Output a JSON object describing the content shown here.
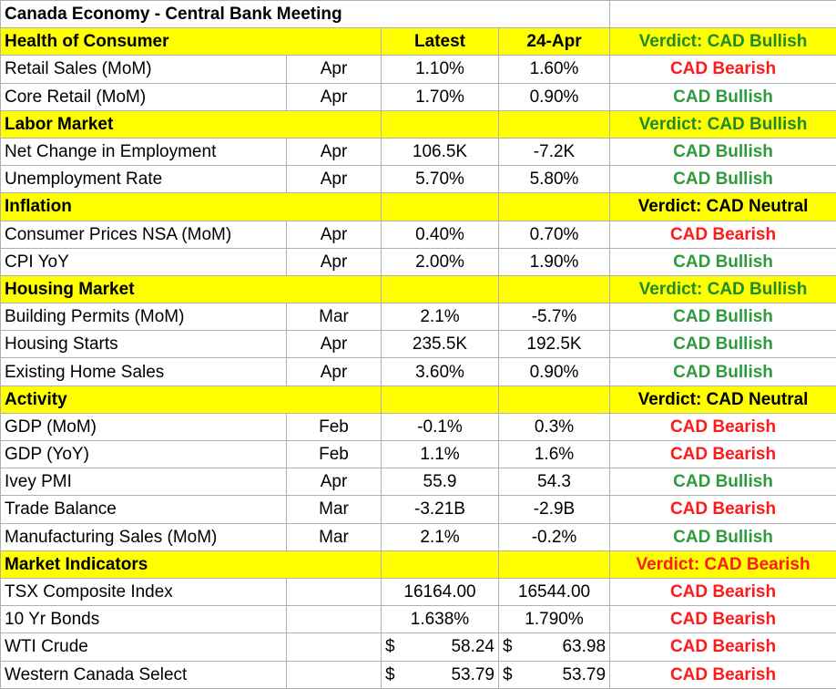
{
  "title": "Canada Economy - Central Bank Meeting",
  "columns": {
    "latest": "Latest",
    "previous": "24-Apr"
  },
  "sections": [
    {
      "name": "Health of Consumer",
      "show_headers": true,
      "verdict": "Verdict: CAD Bullish",
      "verdict_tone": "bull",
      "rows": [
        {
          "indicator": "Retail Sales (MoM)",
          "period": "Apr",
          "latest": "1.10%",
          "previous": "1.60%",
          "signal": "CAD Bearish",
          "tone": "bear"
        },
        {
          "indicator": "Core Retail (MoM)",
          "period": "Apr",
          "latest": "1.70%",
          "previous": "0.90%",
          "signal": "CAD Bullish",
          "tone": "bull"
        }
      ]
    },
    {
      "name": "Labor Market",
      "show_headers": false,
      "verdict": "Verdict: CAD Bullish",
      "verdict_tone": "bull",
      "rows": [
        {
          "indicator": "Net Change in Employment",
          "period": "Apr",
          "latest": "106.5K",
          "previous": "-7.2K",
          "signal": "CAD Bullish",
          "tone": "bull"
        },
        {
          "indicator": "Unemployment Rate",
          "period": "Apr",
          "latest": "5.70%",
          "previous": "5.80%",
          "signal": "CAD Bullish",
          "tone": "bull"
        }
      ]
    },
    {
      "name": "Inflation",
      "show_headers": false,
      "verdict": "Verdict: CAD Neutral",
      "verdict_tone": "neutral",
      "rows": [
        {
          "indicator": "Consumer Prices NSA (MoM)",
          "period": "Apr",
          "latest": "0.40%",
          "previous": "0.70%",
          "signal": "CAD Bearish",
          "tone": "bear"
        },
        {
          "indicator": "CPI YoY",
          "period": "Apr",
          "latest": "2.00%",
          "previous": "1.90%",
          "signal": "CAD Bullish",
          "tone": "bull"
        }
      ]
    },
    {
      "name": "Housing Market",
      "show_headers": false,
      "verdict": "Verdict: CAD Bullish",
      "verdict_tone": "bull",
      "rows": [
        {
          "indicator": "Building Permits (MoM)",
          "period": "Mar",
          "latest": "2.1%",
          "previous": "-5.7%",
          "signal": "CAD Bullish",
          "tone": "bull"
        },
        {
          "indicator": "Housing Starts",
          "period": "Apr",
          "latest": "235.5K",
          "previous": "192.5K",
          "signal": "CAD Bullish",
          "tone": "bull"
        },
        {
          "indicator": "Existing Home Sales",
          "period": "Apr",
          "latest": "3.60%",
          "previous": "0.90%",
          "signal": "CAD Bullish",
          "tone": "bull"
        }
      ]
    },
    {
      "name": "Activity",
      "show_headers": false,
      "verdict": "Verdict: CAD Neutral",
      "verdict_tone": "neutral",
      "rows": [
        {
          "indicator": "GDP (MoM)",
          "period": "Feb",
          "latest": "-0.1%",
          "previous": "0.3%",
          "signal": "CAD Bearish",
          "tone": "bear"
        },
        {
          "indicator": "GDP (YoY)",
          "period": "Feb",
          "latest": "1.1%",
          "previous": "1.6%",
          "signal": "CAD Bearish",
          "tone": "bear"
        },
        {
          "indicator": "Ivey PMI",
          "period": "Apr",
          "latest": "55.9",
          "previous": "54.3",
          "signal": "CAD Bullish",
          "tone": "bull"
        },
        {
          "indicator": "Trade Balance",
          "period": "Mar",
          "latest": "-3.21B",
          "previous": "-2.9B",
          "signal": "CAD Bearish",
          "tone": "bear"
        },
        {
          "indicator": "Manufacturing Sales (MoM)",
          "period": "Mar",
          "latest": "2.1%",
          "previous": "-0.2%",
          "signal": "CAD Bullish",
          "tone": "bull"
        }
      ]
    },
    {
      "name": "Market Indicators",
      "show_headers": false,
      "verdict": "Verdict: CAD Bearish",
      "verdict_tone": "bear",
      "rows": [
        {
          "indicator": "TSX Composite Index",
          "period": "",
          "latest": "16164.00",
          "previous": "16544.00",
          "signal": "CAD Bearish",
          "tone": "bear"
        },
        {
          "indicator": "10 Yr Bonds",
          "period": "",
          "latest": "1.638%",
          "previous": "1.790%",
          "signal": "CAD Bearish",
          "tone": "bear"
        },
        {
          "indicator": "WTI Crude",
          "period": "",
          "latest": "58.24",
          "previous": "63.98",
          "currency": "$",
          "signal": "CAD Bearish",
          "tone": "bear"
        },
        {
          "indicator": "Western Canada Select",
          "period": "",
          "latest": "53.79",
          "previous": "53.79",
          "currency": "$",
          "signal": "CAD Bearish",
          "tone": "bear"
        }
      ]
    }
  ],
  "colors": {
    "section_fill": "#ffff00",
    "bullish": "#2e9b3d",
    "bearish": "#ff1a1a",
    "neutral": "#000000"
  }
}
